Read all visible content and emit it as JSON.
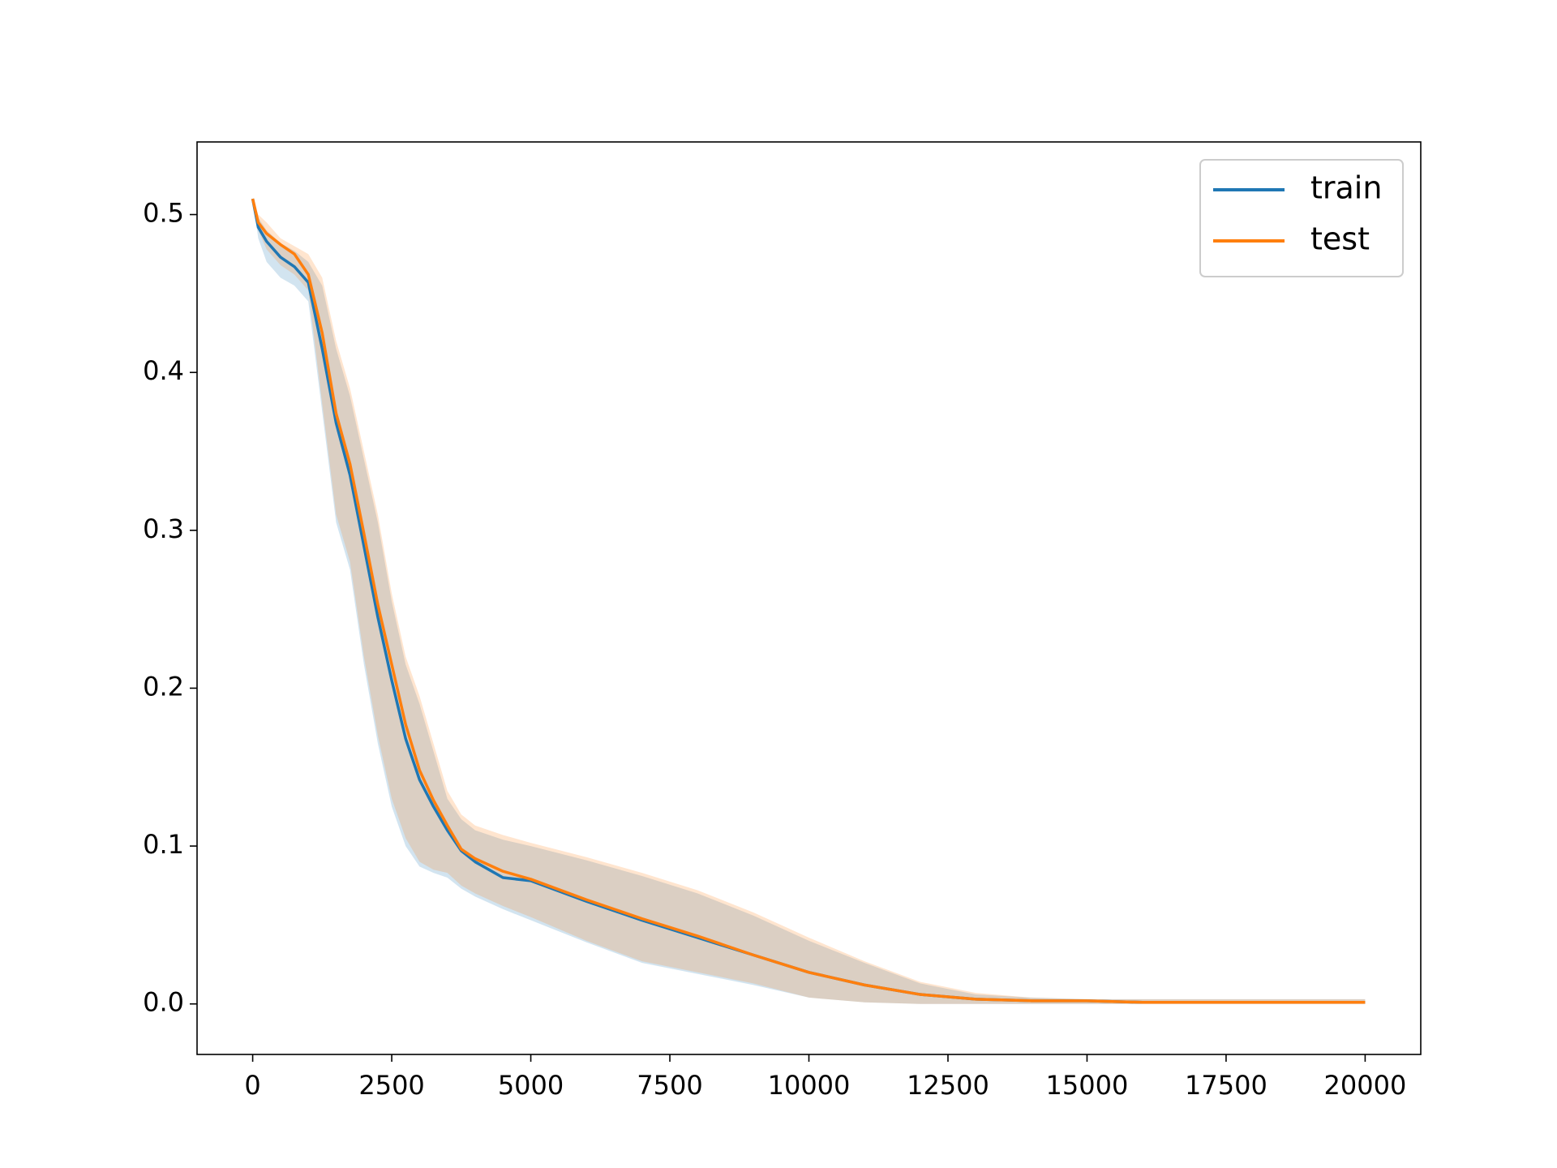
{
  "chart_data": {
    "type": "line",
    "x": [
      0,
      100,
      250,
      500,
      750,
      1000,
      1250,
      1500,
      1750,
      2000,
      2250,
      2500,
      2750,
      3000,
      3250,
      3500,
      3750,
      4000,
      4500,
      5000,
      6000,
      7000,
      8000,
      9000,
      10000,
      11000,
      12000,
      13000,
      14000,
      15000,
      16000,
      17000,
      18000,
      19000,
      20000
    ],
    "series": [
      {
        "name": "train",
        "color": "#1f77b4",
        "values": [
          0.51,
          0.492,
          0.483,
          0.473,
          0.467,
          0.457,
          0.415,
          0.368,
          0.335,
          0.29,
          0.245,
          0.205,
          0.168,
          0.142,
          0.125,
          0.11,
          0.097,
          0.09,
          0.08,
          0.078,
          0.065,
          0.053,
          0.042,
          0.031,
          0.02,
          0.012,
          0.006,
          0.003,
          0.002,
          0.002,
          0.001,
          0.001,
          0.001,
          0.001,
          0.001
        ],
        "lower": [
          0.51,
          0.485,
          0.47,
          0.46,
          0.455,
          0.445,
          0.375,
          0.305,
          0.275,
          0.215,
          0.165,
          0.125,
          0.1,
          0.087,
          0.083,
          0.08,
          0.073,
          0.068,
          0.06,
          0.053,
          0.039,
          0.026,
          0.019,
          0.012,
          0.004,
          0.001,
          0,
          0,
          0,
          0,
          0,
          0,
          0,
          0,
          0
        ],
        "upper": [
          0.51,
          0.498,
          0.49,
          0.482,
          0.477,
          0.47,
          0.455,
          0.415,
          0.385,
          0.345,
          0.305,
          0.255,
          0.215,
          0.19,
          0.16,
          0.13,
          0.117,
          0.11,
          0.104,
          0.1,
          0.091,
          0.081,
          0.07,
          0.056,
          0.04,
          0.026,
          0.013,
          0.006,
          0.004,
          0.003,
          0.003,
          0.003,
          0.003,
          0.003,
          0.003
        ]
      },
      {
        "name": "test",
        "color": "#ff7f0e",
        "values": [
          0.51,
          0.495,
          0.488,
          0.481,
          0.475,
          0.462,
          0.425,
          0.374,
          0.342,
          0.298,
          0.253,
          0.215,
          0.177,
          0.148,
          0.129,
          0.113,
          0.098,
          0.092,
          0.084,
          0.079,
          0.066,
          0.054,
          0.043,
          0.031,
          0.02,
          0.012,
          0.006,
          0.003,
          0.002,
          0.002,
          0.001,
          0.001,
          0.001,
          0.001,
          0.001
        ],
        "lower": [
          0.51,
          0.49,
          0.478,
          0.468,
          0.462,
          0.452,
          0.38,
          0.31,
          0.28,
          0.22,
          0.17,
          0.13,
          0.105,
          0.09,
          0.085,
          0.083,
          0.075,
          0.07,
          0.062,
          0.055,
          0.04,
          0.027,
          0.02,
          0.013,
          0.004,
          0.001,
          0,
          0,
          0,
          0,
          0,
          0,
          0,
          0,
          0
        ],
        "upper": [
          0.51,
          0.5,
          0.495,
          0.485,
          0.48,
          0.475,
          0.46,
          0.42,
          0.39,
          0.35,
          0.31,
          0.26,
          0.22,
          0.195,
          0.165,
          0.135,
          0.12,
          0.113,
          0.107,
          0.102,
          0.093,
          0.083,
          0.072,
          0.058,
          0.042,
          0.027,
          0.014,
          0.007,
          0.004,
          0.003,
          0.003,
          0.003,
          0.003,
          0.003,
          0.003
        ]
      }
    ],
    "xlim": [
      -1000,
      21000
    ],
    "xticks": [
      0,
      2500,
      5000,
      7500,
      10000,
      12500,
      15000,
      17500,
      20000
    ],
    "ylim": [
      -0.032,
      0.546
    ],
    "yticks": [
      {
        "value": 0,
        "label": "0.0"
      },
      0.1,
      0.2,
      0.3,
      0.4,
      0.5
    ],
    "legend": "upper right",
    "grid": false
  }
}
